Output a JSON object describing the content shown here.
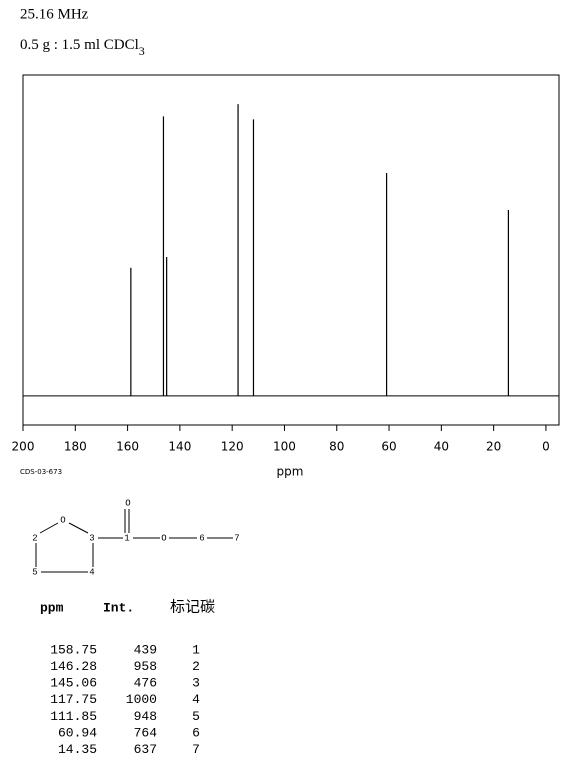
{
  "header": {
    "line1": "25.16 MHz",
    "line2": "0.5 g : 1.5 ml CDCl",
    "line2_sub": "3"
  },
  "chart_data": {
    "type": "stem",
    "x": [
      158.75,
      146.28,
      145.06,
      117.75,
      111.85,
      60.94,
      14.35
    ],
    "values": [
      439,
      958,
      476,
      1000,
      948,
      764,
      637
    ],
    "color": "#000000",
    "xlim": [
      200,
      -5
    ],
    "xticks": [
      200,
      180,
      160,
      140,
      120,
      100,
      80,
      60,
      40,
      20,
      0
    ],
    "ylim": [
      -100,
      1100
    ],
    "xlabel": "ppm",
    "grid": false
  },
  "code": "CDS-03-673",
  "structure": {
    "labels": [
      "O",
      "O",
      "2",
      "3",
      "1",
      "O",
      "6",
      "7",
      "5",
      "4"
    ]
  },
  "table": {
    "headers": [
      "ppm",
      "Int.",
      "标记碳"
    ],
    "carbon": [
      "1",
      "2",
      "3",
      "4",
      "5",
      "6",
      "7"
    ]
  }
}
